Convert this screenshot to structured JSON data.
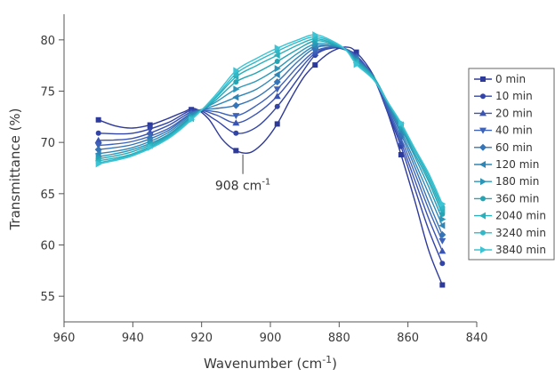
{
  "chart_data": {
    "type": "line",
    "xlabel": "Wavenumber (cm",
    "xlabel_sup": "-1",
    "xlabel_tail": ")",
    "ylabel": "Transmittance (%)",
    "xlim": [
      960,
      840
    ],
    "ylim": [
      52.5,
      82.5
    ],
    "x_reversed": true,
    "xticks": [
      960,
      940,
      920,
      900,
      880,
      860,
      840
    ],
    "yticks": [
      55,
      60,
      65,
      70,
      75,
      80
    ],
    "legend_position": "right",
    "annotation": {
      "text": "908 cm",
      "sup": "-1",
      "x": 908,
      "y": 69.0
    },
    "marker_x": [
      950,
      935,
      923,
      910,
      898,
      887,
      875,
      862,
      850
    ],
    "series": [
      {
        "name": "0 min",
        "color": "#2e3a9a",
        "marker": "square",
        "x": [
          950,
          945,
          940,
          935,
          930,
          925,
          922,
          918,
          914,
          910,
          906,
          902,
          898,
          894,
          890,
          886,
          882,
          878,
          875,
          870,
          866,
          862,
          858,
          854,
          850
        ],
        "y": [
          72.2,
          71.6,
          71.4,
          71.7,
          72.3,
          73.0,
          73.3,
          72.3,
          70.3,
          69.2,
          69.0,
          70.0,
          71.8,
          74.3,
          76.5,
          77.9,
          78.9,
          79.3,
          78.8,
          76.5,
          73.0,
          68.8,
          64.3,
          59.5,
          56.1
        ]
      },
      {
        "name": "10 min",
        "color": "#3244a8",
        "marker": "circle",
        "x": [
          950,
          940,
          930,
          922,
          916,
          910,
          904,
          898,
          892,
          887,
          882,
          878,
          875,
          870,
          866,
          862,
          858,
          854,
          850
        ],
        "y": [
          70.9,
          70.9,
          71.9,
          73.2,
          72.2,
          70.9,
          71.5,
          73.5,
          76.2,
          78.5,
          79.2,
          79.0,
          78.5,
          76.3,
          73.0,
          69.6,
          65.5,
          61.5,
          58.2
        ]
      },
      {
        "name": "20 min",
        "color": "#3a54b4",
        "marker": "triangle",
        "x": [
          950,
          940,
          930,
          922,
          916,
          910,
          904,
          898,
          892,
          887,
          882,
          878,
          875,
          870,
          866,
          862,
          858,
          854,
          850
        ],
        "y": [
          70.2,
          70.4,
          71.6,
          73.1,
          72.7,
          71.9,
          72.8,
          74.5,
          76.9,
          78.7,
          79.3,
          79.1,
          78.4,
          76.4,
          73.2,
          70.0,
          66.3,
          62.6,
          59.4
        ]
      },
      {
        "name": "40 min",
        "color": "#3d62b8",
        "marker": "tri-down",
        "x": [
          950,
          940,
          930,
          922,
          916,
          910,
          904,
          898,
          892,
          887,
          882,
          878,
          875,
          870,
          866,
          862,
          858,
          854,
          850
        ],
        "y": [
          69.7,
          70.1,
          71.3,
          73.0,
          73.0,
          72.6,
          73.6,
          75.2,
          77.4,
          78.9,
          79.3,
          79.1,
          78.3,
          76.4,
          73.4,
          70.4,
          67.0,
          63.5,
          60.4
        ]
      },
      {
        "name": "60 min",
        "color": "#3574b6",
        "marker": "diamond",
        "x": [
          950,
          940,
          930,
          922,
          916,
          910,
          904,
          898,
          892,
          887,
          882,
          878,
          875,
          870,
          866,
          862,
          858,
          854,
          850
        ],
        "y": [
          69.3,
          69.8,
          71.1,
          73.0,
          73.3,
          73.6,
          74.4,
          75.9,
          77.9,
          79.2,
          79.4,
          79.1,
          78.2,
          76.4,
          73.6,
          70.8,
          67.6,
          64.2,
          61.0
        ]
      },
      {
        "name": "120 min",
        "color": "#2f86b6",
        "marker": "tri-left",
        "x": [
          950,
          940,
          930,
          922,
          916,
          910,
          904,
          898,
          892,
          887,
          882,
          878,
          875,
          870,
          866,
          862,
          858,
          854,
          850
        ],
        "y": [
          68.9,
          69.5,
          70.9,
          72.9,
          73.6,
          74.4,
          75.2,
          76.6,
          78.3,
          79.4,
          79.4,
          79.1,
          78.1,
          76.4,
          73.8,
          71.1,
          68.1,
          65.0,
          61.9
        ]
      },
      {
        "name": "180 min",
        "color": "#2b96b8",
        "marker": "tri-right",
        "x": [
          950,
          940,
          930,
          922,
          916,
          910,
          904,
          898,
          892,
          887,
          882,
          878,
          875,
          870,
          866,
          862,
          858,
          854,
          850
        ],
        "y": [
          68.6,
          69.3,
          70.7,
          72.8,
          73.9,
          75.2,
          76.0,
          77.2,
          78.7,
          79.6,
          79.5,
          79.0,
          78.0,
          76.4,
          73.9,
          71.4,
          68.6,
          65.7,
          62.5
        ]
      },
      {
        "name": "360 min",
        "color": "#25a4b4",
        "marker": "circle",
        "x": [
          950,
          940,
          930,
          922,
          916,
          910,
          904,
          898,
          892,
          887,
          882,
          878,
          875,
          870,
          866,
          862,
          858,
          854,
          850
        ],
        "y": [
          68.4,
          69.1,
          70.6,
          72.7,
          74.1,
          75.9,
          76.8,
          77.9,
          79.1,
          79.9,
          79.6,
          79.0,
          77.9,
          76.4,
          74.0,
          71.6,
          68.9,
          66.2,
          63.0
        ]
      },
      {
        "name": "2040 min",
        "color": "#2ab0bc",
        "marker": "tri-left",
        "x": [
          950,
          940,
          930,
          922,
          916,
          910,
          904,
          898,
          892,
          887,
          882,
          878,
          875,
          870,
          866,
          862,
          858,
          854,
          850
        ],
        "y": [
          68.2,
          68.9,
          70.5,
          72.6,
          74.3,
          76.4,
          77.5,
          78.5,
          79.5,
          80.1,
          79.7,
          79.0,
          77.8,
          76.3,
          74.0,
          71.7,
          69.2,
          66.5,
          63.4
        ]
      },
      {
        "name": "3240 min",
        "color": "#30b8c8",
        "marker": "circle",
        "x": [
          950,
          940,
          930,
          922,
          916,
          910,
          904,
          898,
          892,
          887,
          882,
          878,
          875,
          870,
          866,
          862,
          858,
          854,
          850
        ],
        "y": [
          68.0,
          68.8,
          70.4,
          72.6,
          74.4,
          76.7,
          77.9,
          78.9,
          79.8,
          80.3,
          79.8,
          79.0,
          77.7,
          76.2,
          74.0,
          71.8,
          69.3,
          66.8,
          63.7
        ]
      },
      {
        "name": "3840 min",
        "color": "#3cc4d4",
        "marker": "tri-right",
        "x": [
          950,
          940,
          930,
          922,
          916,
          910,
          904,
          898,
          892,
          887,
          882,
          878,
          875,
          870,
          866,
          862,
          858,
          854,
          850
        ],
        "y": [
          67.9,
          68.7,
          70.3,
          72.5,
          74.6,
          77.0,
          78.2,
          79.2,
          80.0,
          80.5,
          79.9,
          79.0,
          77.6,
          76.1,
          74.0,
          71.9,
          69.4,
          67.0,
          64.0
        ]
      }
    ]
  }
}
